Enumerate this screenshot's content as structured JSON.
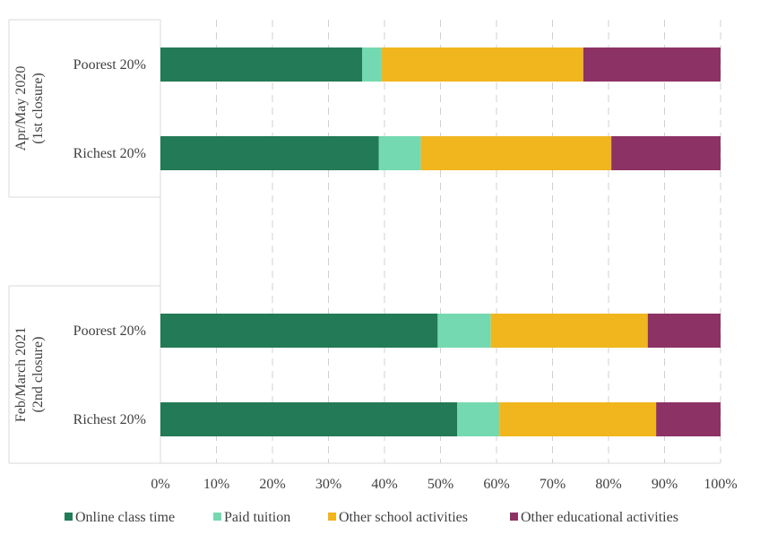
{
  "chart_data": {
    "type": "bar",
    "orientation": "horizontal",
    "stacked": true,
    "groups": [
      {
        "label_lines": [
          "Apr/May 2020",
          "(1st closure)"
        ],
        "categories": [
          "Poorest 20%",
          "Richest 20%"
        ]
      },
      {
        "label_lines": [
          "Feb/March 2021",
          "(2nd closure)"
        ],
        "categories": [
          "Poorest 20%",
          "Richest 20%"
        ]
      }
    ],
    "series": [
      {
        "name": "Online class time",
        "color": "#237a57",
        "values": [
          36,
          39,
          49.5,
          53
        ]
      },
      {
        "name": "Paid tuition",
        "color": "#74d9b0",
        "values": [
          3.5,
          7.5,
          9.5,
          7.5
        ]
      },
      {
        "name": "Other school activities",
        "color": "#f1b51d",
        "values": [
          36,
          34,
          28,
          28
        ]
      },
      {
        "name": "Other educational activities",
        "color": "#8d3264",
        "values": [
          24.5,
          19.5,
          13,
          11.5
        ]
      }
    ],
    "xlim": [
      0,
      100
    ],
    "x_ticks": [
      "0%",
      "10%",
      "20%",
      "30%",
      "40%",
      "50%",
      "60%",
      "70%",
      "80%",
      "90%",
      "100%"
    ],
    "grid": "vertical dashed",
    "legend_position": "bottom"
  }
}
